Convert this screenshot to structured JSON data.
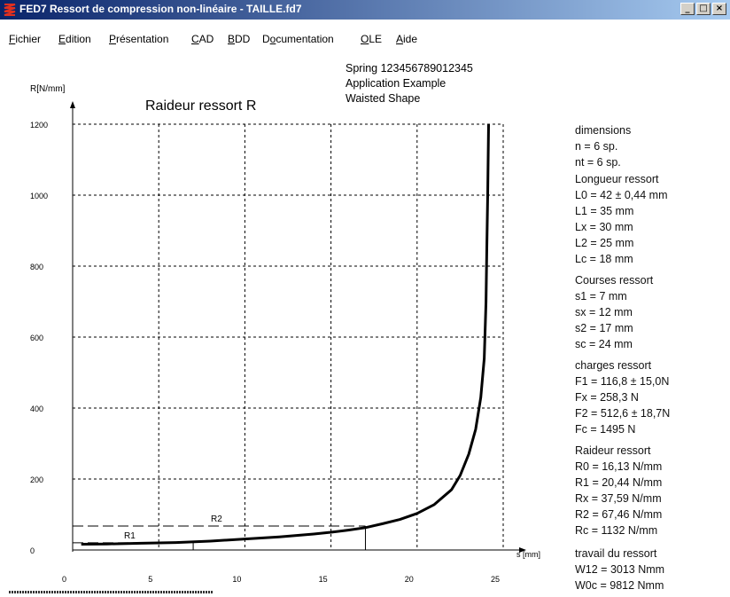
{
  "window": {
    "title": "FED7  Ressort de compression non-linéaire  -  TAILLE.fd7",
    "minimize": "_",
    "maximize": "□",
    "close": "×"
  },
  "menu": [
    {
      "label": "Fichier",
      "accel": "F",
      "rest": "ichier"
    },
    {
      "label": "Edition",
      "accel": "E",
      "rest": "dition"
    },
    {
      "label": "Présentation",
      "accel": "P",
      "rest": "résentation"
    },
    {
      "label": "CAD",
      "accel": "C",
      "rest": "AD"
    },
    {
      "label": "BDD",
      "accel": "B",
      "rest": "DD"
    },
    {
      "label": "Documentation",
      "accel": "o",
      "pre": "D",
      "rest": "cumentation"
    },
    {
      "label": "OLE",
      "accel": "O",
      "rest": "LE"
    },
    {
      "label": "Aide",
      "accel": "A",
      "rest": "ide"
    }
  ],
  "header_info": [
    "Spring 123456789012345",
    "Application Example",
    "Waisted Shape"
  ],
  "chart_data": {
    "type": "line",
    "title": "Raideur ressort  R",
    "ylabel": "R[N/mm]",
    "xlabel": "s [mm]",
    "xlim": [
      0,
      25
    ],
    "ylim": [
      0,
      1200
    ],
    "x_ticks": [
      0,
      5,
      10,
      15,
      20,
      25
    ],
    "y_ticks": [
      0,
      200,
      400,
      600,
      800,
      1000,
      1200
    ],
    "grid": true,
    "series": [
      {
        "x": [
          0.5,
          2,
          4,
          6,
          8,
          10,
          12,
          14,
          15,
          16,
          17,
          18,
          19,
          20,
          21,
          22,
          22.5,
          23,
          23.4,
          23.7,
          23.9,
          24.0,
          24.05,
          24.1,
          24.15
        ],
        "y": [
          16.13,
          17,
          19,
          21,
          25,
          31,
          37,
          45,
          50,
          56,
          63,
          74,
          86,
          103,
          128,
          170,
          210,
          270,
          340,
          430,
          540,
          700,
          850,
          1000,
          1200
        ]
      }
    ],
    "markers": [
      {
        "label": "R1",
        "x": 7,
        "y": 20.44
      },
      {
        "label": "R2",
        "x": 17,
        "y": 67.46
      }
    ]
  },
  "info": [
    {
      "title": "dimensions",
      "lines": [
        "n = 6 sp.",
        "nt = 6 sp."
      ]
    },
    {
      "title": "Longueur ressort",
      "lines": [
        "L0 = 42 ± 0,44 mm",
        "L1 = 35 mm",
        "Lx = 30 mm",
        "L2 = 25 mm",
        "Lc = 18 mm"
      ]
    },
    {
      "title": "Courses ressort",
      "lines": [
        "s1 = 7 mm",
        "sx = 12 mm",
        "s2 = 17 mm",
        "sc = 24 mm"
      ]
    },
    {
      "title": "charges ressort",
      "lines": [
        "F1 = 116,8 ± 15,0N",
        "Fx = 258,3 N",
        "F2 = 512,6 ± 18,7N",
        "Fc = 1495 N"
      ]
    },
    {
      "title": "Raideur ressort",
      "lines": [
        "R0 = 16,13 N/mm",
        "R1 = 20,44 N/mm",
        "Rx = 37,59 N/mm",
        "R2 = 67,46 N/mm",
        "Rc = 1132 N/mm"
      ]
    },
    {
      "title": "travail du ressort",
      "lines": [
        "W12 = 3013 Nmm",
        "W0c = 9812 Nmm"
      ]
    }
  ],
  "colors": {
    "titlebar_start": "#0a246a",
    "titlebar_end": "#a6caf0",
    "icon": "#e03020"
  }
}
